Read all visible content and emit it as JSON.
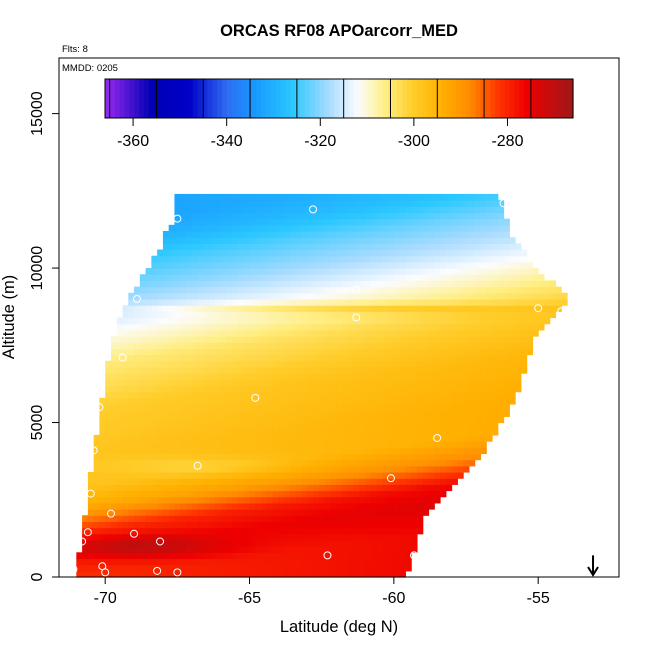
{
  "chart_data": {
    "type": "heatmap",
    "title": "ORCAS RF08 APOarcorr_MED",
    "annotations": {
      "flights": "Flts: 8",
      "date": "MMDD: 0205"
    },
    "xlabel": "Latitude (deg N)",
    "ylabel": "Altitude (m)",
    "xlim": [
      -71.6,
      -52.2
    ],
    "ylim": [
      0,
      16800
    ],
    "x_ticks": [
      -70,
      -65,
      -60,
      -55
    ],
    "x_tick_labels": [
      "-70",
      "-65",
      "-60",
      "-55"
    ],
    "y_ticks": [
      0,
      5000,
      10000,
      15000
    ],
    "y_tick_labels": [
      "0",
      "5000",
      "10000",
      "15000"
    ],
    "grid": false,
    "colorbar": {
      "placement": "top-inside",
      "range": [
        -366,
        -266
      ],
      "ticks": [
        -360,
        -340,
        -320,
        -300,
        -280
      ],
      "tick_labels": [
        "-360",
        "-340",
        "-320",
        "-300",
        "-280"
      ],
      "stops": [
        {
          "value": -366,
          "color": "#9a2af0"
        },
        {
          "value": -356,
          "color": "#0000b4"
        },
        {
          "value": -348,
          "color": "#0000c8"
        },
        {
          "value": -340,
          "color": "#2f6cf2"
        },
        {
          "value": -334,
          "color": "#1799ff"
        },
        {
          "value": -326,
          "color": "#2bc8ff"
        },
        {
          "value": -318,
          "color": "#aadcff"
        },
        {
          "value": -312,
          "color": "#fbfcff"
        },
        {
          "value": -306,
          "color": "#ffee82"
        },
        {
          "value": -300,
          "color": "#ffcc28"
        },
        {
          "value": -294,
          "color": "#ffb000"
        },
        {
          "value": -288,
          "color": "#ff8a00"
        },
        {
          "value": -282,
          "color": "#ff3600"
        },
        {
          "value": -276,
          "color": "#ee0000"
        },
        {
          "value": -266,
          "color": "#a01818"
        }
      ]
    },
    "curtain": {
      "cell_width_deg": 0.2,
      "cell_height_m": 200,
      "left_edge": [
        [
          0,
          -71.1
        ],
        [
          1200,
          -70.8
        ],
        [
          3500,
          -70.5
        ],
        [
          6500,
          -70.0
        ],
        [
          8500,
          -69.5
        ],
        [
          10500,
          -68.2
        ],
        [
          11700,
          -67.6
        ]
      ],
      "right_edge": [
        [
          0,
          -59.6
        ],
        [
          2000,
          -58.9
        ],
        [
          3500,
          -57.3
        ],
        [
          5500,
          -55.9
        ],
        [
          8000,
          -55.0
        ],
        [
          9000,
          -53.8
        ],
        [
          10000,
          -55.1
        ],
        [
          11200,
          -56.0
        ],
        [
          12300,
          -56.3
        ]
      ],
      "value_profile": [
        [
          0,
          -279
        ],
        [
          900,
          -276
        ],
        [
          1500,
          -279
        ],
        [
          2300,
          -291
        ],
        [
          3000,
          -296
        ],
        [
          4000,
          -296
        ],
        [
          5500,
          -298
        ],
        [
          7000,
          -303
        ],
        [
          7800,
          -308
        ],
        [
          8600,
          -313
        ],
        [
          9400,
          -318
        ],
        [
          10400,
          -323
        ],
        [
          11200,
          -328
        ],
        [
          11800,
          -330
        ]
      ],
      "tilt_deg_per_m": 0.00075,
      "latitude_gradient_per_deg": 0.35,
      "anomalies": [
        {
          "lat": -68.8,
          "alt": 1000,
          "dlat": 3.0,
          "dalt": 350,
          "delta": 8
        },
        {
          "lat": -61.8,
          "alt": 8700,
          "dlat": 6.5,
          "dalt": 180,
          "delta": 6
        },
        {
          "lat": -66.8,
          "alt": 3600,
          "dlat": 3.0,
          "dalt": 300,
          "delta": -4
        }
      ]
    },
    "flight_points": [
      {
        "lat": -71.1,
        "alt": 250
      },
      {
        "lat": -71.2,
        "alt": 1300
      },
      {
        "lat": -70.8,
        "alt": 1150
      },
      {
        "lat": -70.6,
        "alt": 1450
      },
      {
        "lat": -70.1,
        "alt": 350
      },
      {
        "lat": -70.0,
        "alt": 150
      },
      {
        "lat": -69.8,
        "alt": 2050
      },
      {
        "lat": -69.0,
        "alt": 1400
      },
      {
        "lat": -68.1,
        "alt": 1150
      },
      {
        "lat": -68.2,
        "alt": 200
      },
      {
        "lat": -67.5,
        "alt": 150
      },
      {
        "lat": -70.5,
        "alt": 2700
      },
      {
        "lat": -70.4,
        "alt": 4100
      },
      {
        "lat": -70.2,
        "alt": 5500
      },
      {
        "lat": -69.4,
        "alt": 7100
      },
      {
        "lat": -68.9,
        "alt": 9000
      },
      {
        "lat": -67.5,
        "alt": 11600
      },
      {
        "lat": -66.8,
        "alt": 3600
      },
      {
        "lat": -64.8,
        "alt": 5800
      },
      {
        "lat": -62.8,
        "alt": 11900
      },
      {
        "lat": -62.3,
        "alt": 700
      },
      {
        "lat": -61.3,
        "alt": 9300
      },
      {
        "lat": -61.3,
        "alt": 8400
      },
      {
        "lat": -60.1,
        "alt": 3200
      },
      {
        "lat": -59.3,
        "alt": 700
      },
      {
        "lat": -58.5,
        "alt": 4500
      },
      {
        "lat": -56.2,
        "alt": 12100
      },
      {
        "lat": -55.0,
        "alt": 8700
      },
      {
        "lat": -54.2,
        "alt": 8600
      }
    ],
    "north_arrow": {
      "lat": -53.1,
      "alt_top": 700,
      "alt_bottom": 0
    }
  }
}
